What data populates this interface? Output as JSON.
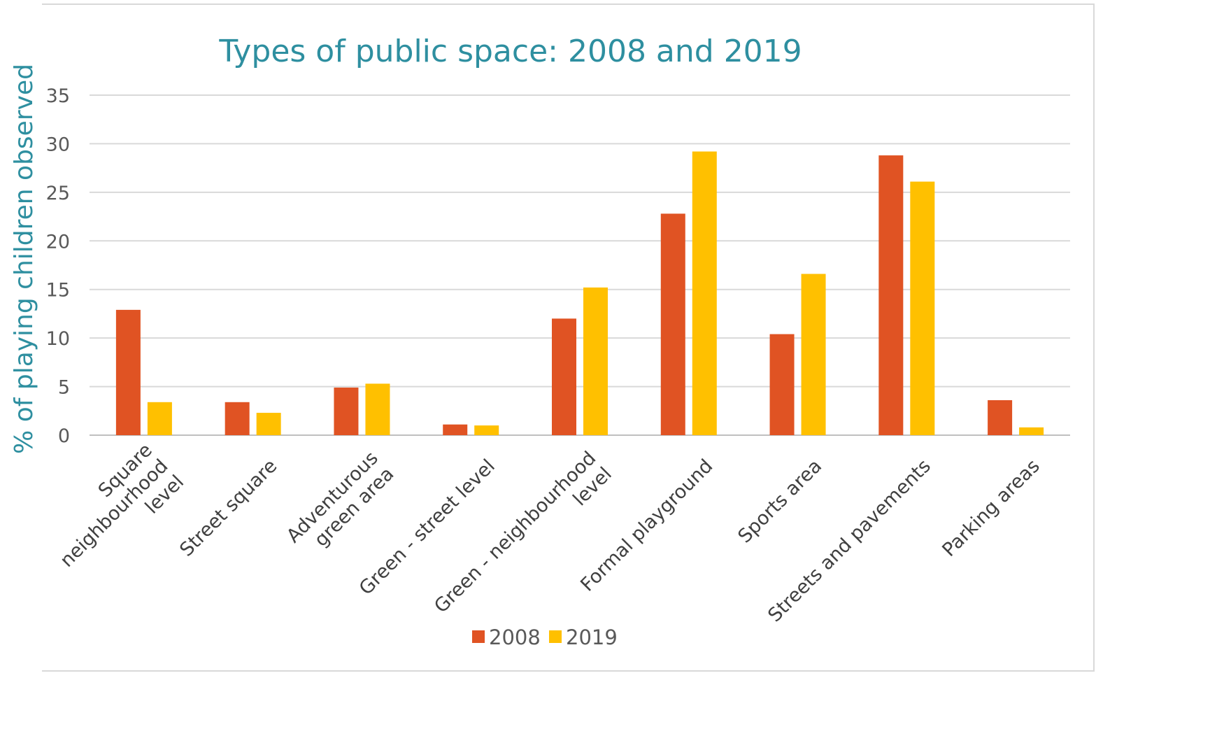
{
  "chart_data": {
    "type": "bar",
    "title": "Types of public space: 2008 and 2019",
    "xlabel": "",
    "ylabel": "% of playing children observed",
    "ylim": [
      0,
      35
    ],
    "yticks": [
      0,
      5,
      10,
      15,
      20,
      25,
      30,
      35
    ],
    "grid": "horizontal",
    "legend_position": "bottom",
    "categories": [
      [
        "Square",
        "neighbourhood",
        "level"
      ],
      [
        "Street square"
      ],
      [
        "Adventurous",
        "green area"
      ],
      [
        "Green - street level"
      ],
      [
        "Green - neighbourhood",
        "level"
      ],
      [
        "Formal playground"
      ],
      [
        "Sports area"
      ],
      [
        "Streets and pavements"
      ],
      [
        "Parking areas"
      ]
    ],
    "series": [
      {
        "name": "2008",
        "color": "#e05323",
        "values": [
          12.9,
          3.4,
          4.9,
          1.1,
          12.0,
          22.8,
          10.4,
          28.8,
          3.6
        ]
      },
      {
        "name": "2019",
        "color": "#ffc000",
        "values": [
          3.4,
          2.3,
          5.3,
          1.0,
          15.2,
          29.2,
          16.6,
          26.1,
          0.8
        ]
      }
    ]
  }
}
